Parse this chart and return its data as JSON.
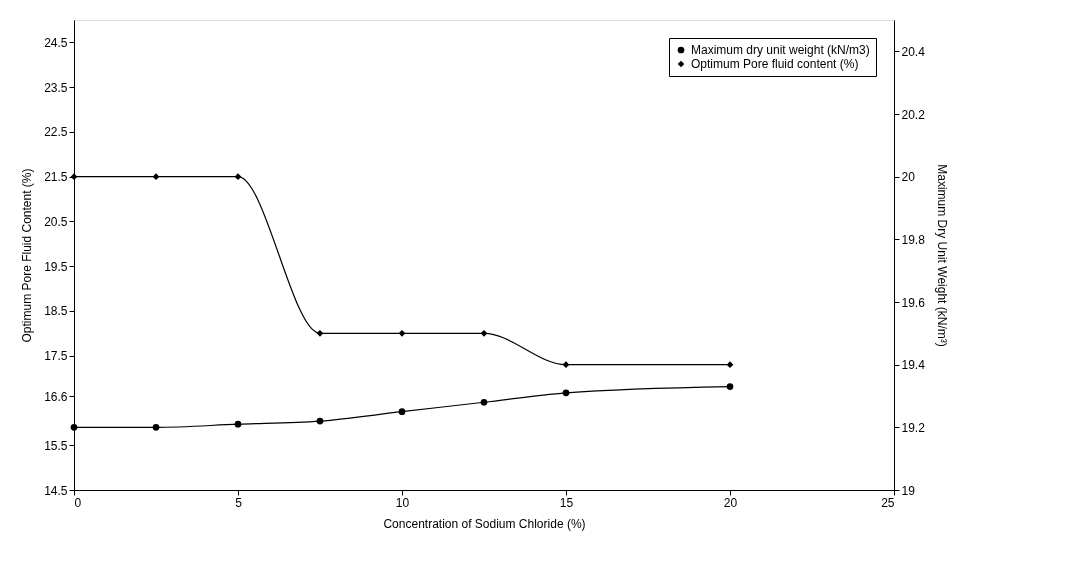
{
  "chart_data": {
    "type": "line",
    "xlabel": "Concentration of  Sodium Chloride (%)",
    "ylabel": "Optimum Pore Fluid Content (%)",
    "y2label": "Maximum Dry Unit Weight (kN/m³)",
    "x": [
      0,
      2.5,
      5,
      7.5,
      10,
      12.5,
      15,
      20
    ],
    "series": [
      {
        "name": "Maximum dry unit weight (kN/m3)",
        "color": "#000000",
        "marker": "circle",
        "axis": "y2",
        "values": [
          19.2,
          19.2,
          19.21,
          19.22,
          19.25,
          19.28,
          19.31,
          19.33
        ]
      },
      {
        "name": "Optimum Pore fluid content (%)",
        "color": "#000000",
        "marker": "diamond",
        "values": [
          21.5,
          21.5,
          21.5,
          18,
          18,
          18,
          17.3,
          17.3
        ]
      }
    ],
    "xlim": [
      0,
      25
    ],
    "xticks": [
      0,
      5,
      10,
      15,
      20,
      25
    ],
    "ylim": [
      14.5,
      25
    ],
    "yticks": [
      14.5,
      15.5,
      16.6,
      17.5,
      18.5,
      19.5,
      20.5,
      21.5,
      22.5,
      23.5,
      24.5
    ],
    "y2lim": [
      19,
      20.5
    ],
    "y2ticks": [
      19,
      19.2,
      19.4,
      19.6,
      19.8,
      20,
      20.2,
      20.4
    ],
    "grid": false,
    "legend": "top right",
    "line_style": "solid"
  }
}
